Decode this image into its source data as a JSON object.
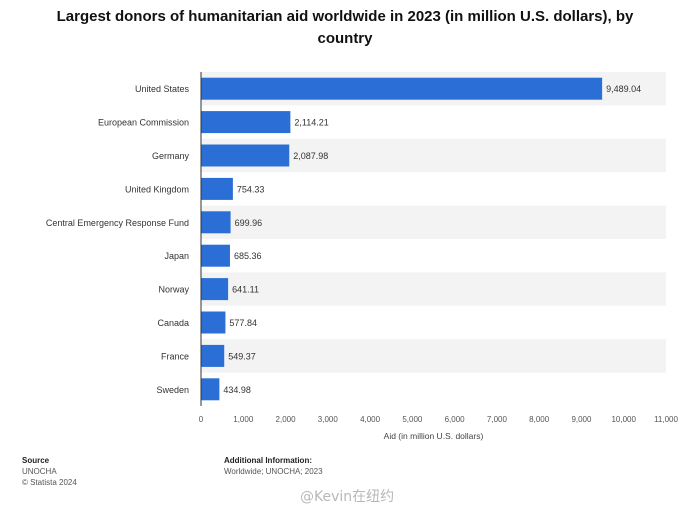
{
  "chart_data": {
    "type": "bar",
    "orientation": "horizontal",
    "title": "Largest donors of humanitarian aid worldwide in 2023 (in million U.S. dollars), by country",
    "xlabel": "Aid (in million U.S. dollars)",
    "ylabel": "",
    "categories": [
      "United States",
      "European Commission",
      "Germany",
      "United Kingdom",
      "Central Emergency Response Fund",
      "Japan",
      "Norway",
      "Canada",
      "France",
      "Sweden"
    ],
    "values": [
      9489.04,
      2114.21,
      2087.98,
      754.33,
      699.96,
      685.36,
      641.11,
      577.84,
      549.37,
      434.98
    ],
    "value_labels": [
      "9,489.04",
      "2,114.21",
      "2,087.98",
      "754.33",
      "699.96",
      "685.36",
      "641.11",
      "577.84",
      "549.37",
      "434.98"
    ],
    "xlim": [
      0,
      11000
    ],
    "xticks": [
      0,
      1000,
      2000,
      3000,
      4000,
      5000,
      6000,
      7000,
      8000,
      9000,
      10000,
      11000
    ],
    "xtick_labels": [
      "0",
      "1,000",
      "2,000",
      "3,000",
      "4,000",
      "5,000",
      "6,000",
      "7,000",
      "8,000",
      "9,000",
      "10,000",
      "11,000"
    ],
    "grid": false,
    "bar_color": "#2b6fd6"
  },
  "footer": {
    "source_heading": "Source",
    "source_lines": [
      "UNOCHA",
      "© Statista 2024"
    ],
    "info_heading": "Additional Information:",
    "info_lines": [
      "Worldwide; UNOCHA; 2023"
    ]
  },
  "watermark": "@Kevin在纽约"
}
